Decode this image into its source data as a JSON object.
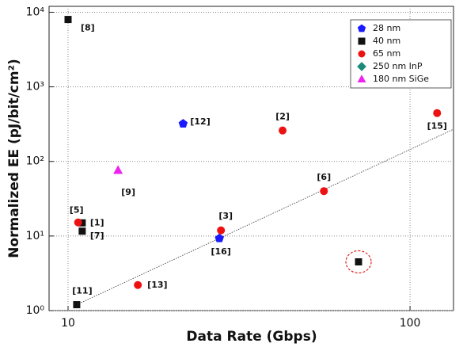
{
  "chart_data": {
    "type": "scatter",
    "x_label": "Data Rate (Gbps)",
    "y_label": "Normalized EE (pJ/bit/cm²)",
    "x_scale": "log",
    "y_scale": "log",
    "xlim": [
      8.8,
      134
    ],
    "ylim": [
      1,
      12000
    ],
    "xticks": [
      10,
      100
    ],
    "yticks": [
      {
        "value": 1,
        "label": "10⁰"
      },
      {
        "value": 10,
        "label": "10¹"
      },
      {
        "value": 100,
        "label": "10²"
      },
      {
        "value": 1000,
        "label": "10³"
      },
      {
        "value": 10000,
        "label": "10⁴"
      }
    ],
    "grid": true,
    "legend": "upper right",
    "series": [
      {
        "name": "28 nm",
        "color": "#1a1aff",
        "marker": "pentagon",
        "x": [
          21.7,
          27.7
        ],
        "y": [
          320,
          9.3
        ],
        "labels": [
          "[12]",
          "[16]"
        ]
      },
      {
        "name": "40 nm",
        "color": "#111111",
        "marker": "square",
        "x": [
          10,
          11,
          11,
          10.6,
          70.7
        ],
        "y": [
          8000,
          15,
          11.6,
          1.2,
          4.5
        ],
        "labels": [
          "[8]",
          "[1]",
          "[7]",
          "[11]",
          null
        ]
      },
      {
        "name": "65 nm",
        "color": "#ee1111",
        "marker": "circle",
        "x": [
          42.4,
          120,
          56,
          10.7,
          28,
          16
        ],
        "y": [
          260,
          445,
          40,
          15.2,
          11.9,
          2.2
        ],
        "labels": [
          "[2]",
          "[15]",
          "[6]",
          "[5]",
          "[3]",
          "[13]"
        ]
      },
      {
        "name": "250 nm InP",
        "color": "#1a8a7a",
        "marker": "diamond",
        "x": [],
        "y": [],
        "labels": []
      },
      {
        "name": "180 nm SiGe",
        "color": "#ee22ee",
        "marker": "triangle",
        "x": [
          14
        ],
        "y": [
          76
        ],
        "labels": [
          "[9]"
        ]
      }
    ],
    "fit_line": {
      "x": [
        10.6,
        134
      ],
      "y": [
        1.2,
        270
      ]
    },
    "highlight": {
      "series": 1,
      "index": 4
    }
  }
}
